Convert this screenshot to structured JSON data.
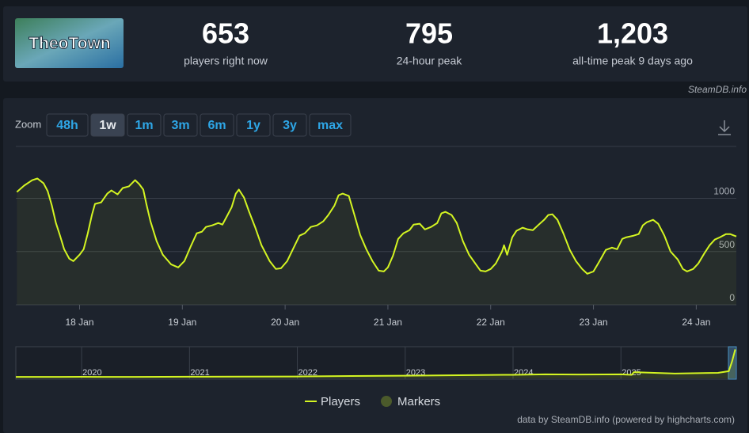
{
  "header": {
    "game": "TheoTown",
    "stats": [
      {
        "value": "653",
        "label": "players right now"
      },
      {
        "value": "795",
        "label": "24-hour peak"
      },
      {
        "value": "1,203",
        "label": "all-time peak 9 days ago"
      }
    ],
    "source": "SteamDB.info"
  },
  "zoom": {
    "label": "Zoom",
    "buttons": [
      "48h",
      "1w",
      "1m",
      "3m",
      "6m",
      "1y",
      "3y",
      "max"
    ],
    "active": 1
  },
  "legend": {
    "markers": {
      "name": "Markers",
      "color": "#4b5a2b"
    }
  },
  "footer": "data by SteamDB.info (powered by highcharts.com)",
  "chart_data": [
    {
      "type": "line",
      "grid": true,
      "x": [
        17.39,
        17.46,
        17.54,
        17.59,
        17.65,
        17.69,
        17.73,
        17.77,
        17.81,
        17.85,
        17.9,
        17.94,
        18.0,
        18.04,
        18.08,
        18.12,
        18.15,
        18.21,
        18.27,
        18.31,
        18.37,
        18.42,
        18.48,
        18.54,
        18.58,
        18.62,
        18.65,
        18.69,
        18.75,
        18.81,
        18.89,
        18.96,
        19.02,
        19.08,
        19.14,
        19.19,
        19.23,
        19.29,
        19.35,
        19.39,
        19.44,
        19.48,
        19.52,
        19.55,
        19.6,
        19.65,
        19.71,
        19.77,
        19.85,
        19.91,
        19.96,
        20.02,
        20.08,
        20.14,
        20.19,
        20.25,
        20.31,
        20.37,
        20.42,
        20.48,
        20.52,
        20.56,
        20.62,
        20.67,
        20.73,
        20.79,
        20.85,
        20.91,
        20.96,
        21.0,
        21.05,
        21.1,
        21.15,
        21.21,
        21.25,
        21.31,
        21.36,
        21.42,
        21.48,
        21.52,
        21.56,
        21.62,
        21.67,
        21.73,
        21.79,
        21.85,
        21.9,
        21.95,
        22.0,
        22.05,
        22.11,
        22.13,
        22.16,
        22.21,
        22.25,
        22.31,
        22.36,
        22.41,
        22.46,
        22.52,
        22.56,
        22.6,
        22.65,
        22.71,
        22.77,
        22.83,
        22.89,
        22.94,
        23.0,
        23.05,
        23.12,
        23.18,
        23.23,
        23.28,
        23.32,
        23.39,
        23.44,
        23.48,
        23.52,
        23.58,
        23.63,
        23.69,
        23.75,
        23.82,
        23.87,
        23.91,
        23.97,
        24.02,
        24.08,
        24.13,
        24.18,
        24.23,
        24.29,
        24.33,
        24.39
      ],
      "series": [
        {
          "name": "Players",
          "color": "#d4f522",
          "values": [
            1060,
            1119,
            1171,
            1186,
            1141,
            1067,
            933,
            768,
            649,
            522,
            433,
            410,
            470,
            522,
            671,
            843,
            947,
            962,
            1044,
            1074,
            1037,
            1097,
            1112,
            1171,
            1134,
            1082,
            947,
            783,
            597,
            470,
            380,
            351,
            410,
            545,
            671,
            686,
            731,
            746,
            768,
            753,
            843,
            917,
            1044,
            1082,
            1007,
            873,
            724,
            559,
            410,
            336,
            343,
            410,
            530,
            649,
            671,
            731,
            746,
            783,
            843,
            932,
            1029,
            1044,
            1022,
            858,
            656,
            522,
            410,
            321,
            313,
            351,
            462,
            619,
            671,
            701,
            753,
            761,
            708,
            731,
            768,
            858,
            873,
            843,
            768,
            597,
            470,
            388,
            321,
            313,
            336,
            388,
            500,
            559,
            470,
            634,
            694,
            724,
            708,
            701,
            746,
            798,
            843,
            850,
            798,
            664,
            515,
            410,
            336,
            291,
            313,
            395,
            515,
            537,
            522,
            619,
            634,
            649,
            664,
            746,
            776,
            798,
            761,
            649,
            500,
            425,
            336,
            313,
            336,
            388,
            485,
            559,
            612,
            634,
            664,
            664,
            642
          ]
        }
      ],
      "xlim": [
        17.38,
        24.39
      ],
      "xticks": [
        {
          "value": 18,
          "label": "18 Jan"
        },
        {
          "value": 19,
          "label": "19 Jan"
        },
        {
          "value": 20,
          "label": "20 Jan"
        },
        {
          "value": 21,
          "label": "21 Jan"
        },
        {
          "value": 22,
          "label": "22 Jan"
        },
        {
          "value": 23,
          "label": "23 Jan"
        },
        {
          "value": 24,
          "label": "24 Jan"
        }
      ],
      "ylim": [
        0,
        1450
      ],
      "yticks": [
        0,
        500,
        1000
      ]
    },
    {
      "type": "line",
      "grid": true,
      "x": [
        2019.39,
        2019.8,
        2020.0,
        2020.5,
        2021.0,
        2021.5,
        2022.0,
        2022.5,
        2023.0,
        2023.5,
        2024.0,
        2024.3,
        2024.6,
        2025.0,
        2025.1,
        2025.12,
        2025.5,
        2025.9,
        2026.0,
        2026.03,
        2026.06
      ],
      "series": [
        {
          "name": "Players",
          "color": "#d4f522",
          "values": [
            60,
            60,
            65,
            60,
            70,
            75,
            80,
            100,
            110,
            130,
            150,
            170,
            160,
            170,
            150,
            260,
            200,
            230,
            300,
            700,
            1203
          ]
        }
      ],
      "xlim": [
        2019.39,
        2026.07
      ],
      "xticks": [
        2020,
        2021,
        2022,
        2023,
        2024,
        2025
      ],
      "ylim": [
        0,
        1250
      ]
    }
  ]
}
